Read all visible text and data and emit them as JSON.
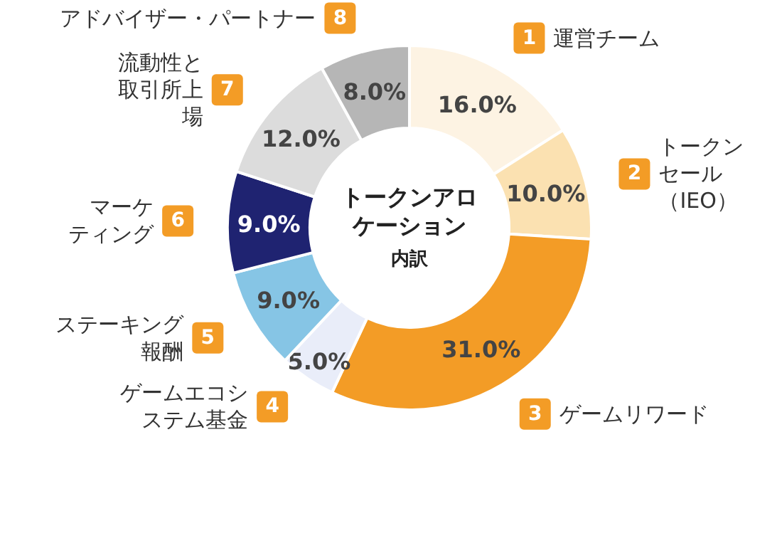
{
  "chart_data": {
    "type": "donut",
    "title": "トークンアロケーション",
    "subtitle": "内訳",
    "categories": [
      "運営チーム",
      "トークンセール（IEO）",
      "ゲームリワード",
      "ゲームエコシステム基金",
      "ステーキング報酬",
      "マーケティング",
      "流動性と取引所上場",
      "アドバイザー・パートナー"
    ],
    "values": [
      16,
      10,
      31,
      5,
      9,
      9,
      12,
      8
    ],
    "value_labels": [
      "16.0%",
      "10.0%",
      "31.0%",
      "5.0%",
      "9.0%",
      "9.0%",
      "12.0%",
      "8.0%"
    ],
    "colors": [
      "#fdf3e3",
      "#fbe1b1",
      "#f39c26",
      "#e9edf9",
      "#86c5e5",
      "#1f2371",
      "#dcdcdc",
      "#b6b6b6"
    ],
    "annotations": [
      "1",
      "2",
      "3",
      "4",
      "5",
      "6",
      "7",
      "8"
    ]
  }
}
